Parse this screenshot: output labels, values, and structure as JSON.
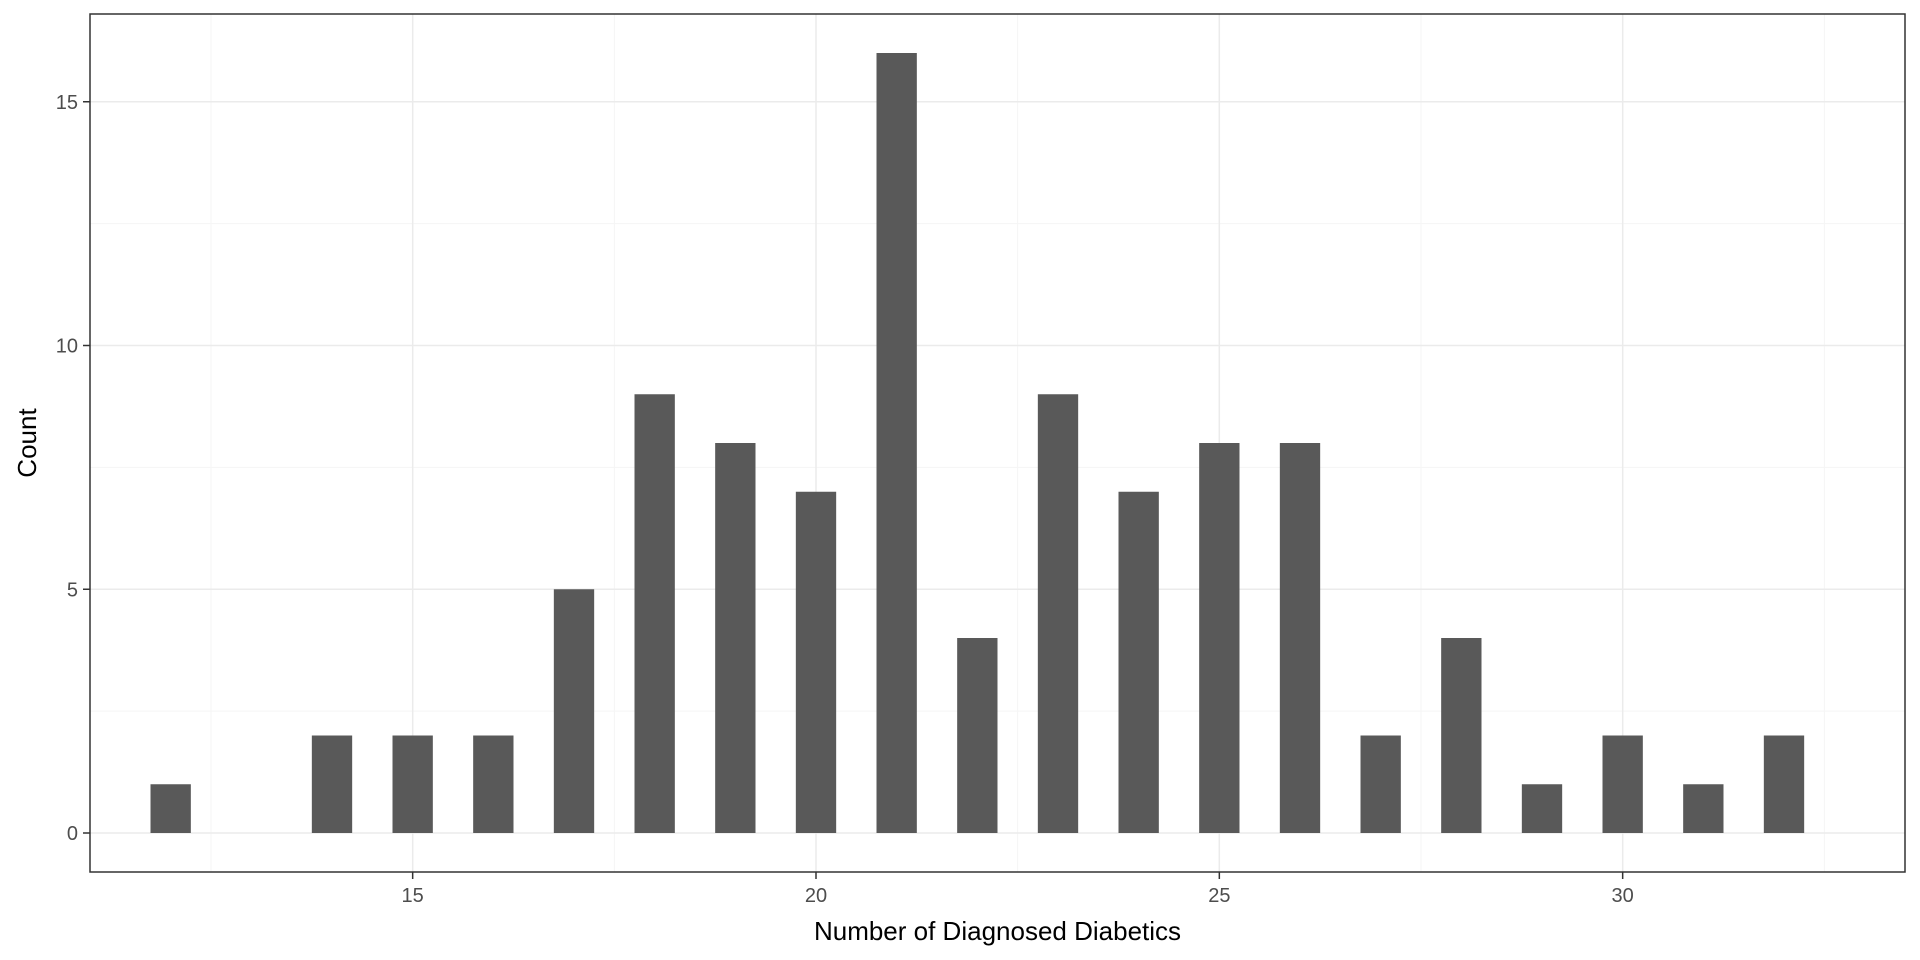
{
  "chart_data": {
    "type": "bar",
    "title": "",
    "xlabel": "Number of Diagnosed Diabetics",
    "ylabel": "Count",
    "x": [
      12,
      14,
      15,
      16,
      17,
      18,
      19,
      20,
      21,
      22,
      23,
      24,
      25,
      26,
      27,
      28,
      29,
      30,
      31,
      32
    ],
    "values": [
      1,
      2,
      2,
      2,
      5,
      9,
      8,
      7,
      16,
      4,
      9,
      7,
      8,
      8,
      2,
      4,
      1,
      2,
      1,
      2
    ],
    "xlim": [
      11.0,
      33.5
    ],
    "ylim": [
      -0.8,
      16.8
    ],
    "x_ticks": [
      15,
      20,
      25,
      30
    ],
    "x_tick_labels": [
      "15",
      "20",
      "25",
      "30"
    ],
    "y_ticks": [
      0,
      5,
      10,
      15
    ],
    "y_tick_labels": [
      "0",
      "5",
      "10",
      "15"
    ],
    "grid": true,
    "legend": "none",
    "colors": {
      "bar": "#595959",
      "panel_border": "#333333",
      "grid_major": "#ebebeb",
      "grid_minor": "#f5f5f5",
      "tick_label": "#4d4d4d",
      "axis_title": "#000000"
    }
  }
}
